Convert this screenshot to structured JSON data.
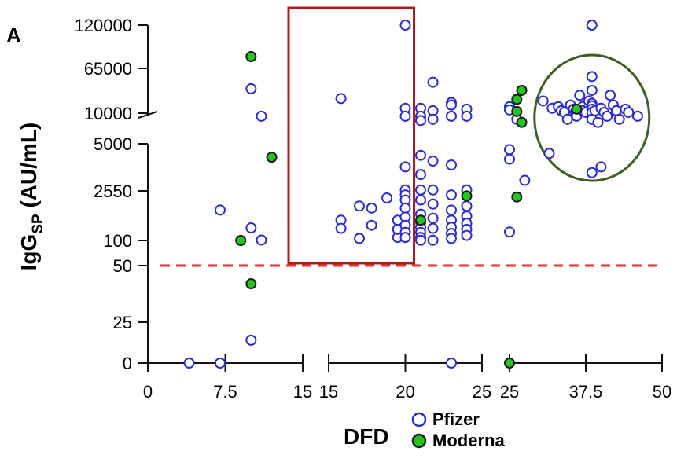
{
  "chart_data": {
    "type": "scatter",
    "panel_label": "A",
    "xlabel": "DFD",
    "ylabel": {
      "main": "IgG",
      "sub": "SP",
      "unit": " (AU/mL)"
    },
    "y_tick_labels": [
      "0",
      "25",
      "50",
      "100",
      "2550",
      "5000",
      "10000",
      "65000",
      "120000"
    ],
    "x_segments": [
      {
        "range": [
          0,
          15
        ],
        "tick_labels": [
          "0",
          "7.5",
          "15"
        ]
      },
      {
        "range": [
          15,
          25
        ],
        "tick_labels": [
          "15",
          "20",
          "25"
        ]
      },
      {
        "range": [
          25,
          50
        ],
        "tick_labels": [
          "25",
          "37.5",
          "50"
        ]
      }
    ],
    "threshold": {
      "y": 50,
      "color": "#e8322c",
      "style": "dashed"
    },
    "legend": [
      {
        "name": "Pfizer",
        "color": "#2b2bd6",
        "fill": "#ffffff"
      },
      {
        "name": "Moderna",
        "color": "#1a1a1a",
        "fill": "#22c61f"
      }
    ],
    "highlight_rect": {
      "x_range": [
        15,
        20
      ],
      "y_range": [
        50,
        130000
      ],
      "color": "#b01c1c"
    },
    "highlight_circle": {
      "x_center": 38.5,
      "y_center": 10000,
      "color": "#3f5e23"
    },
    "series": [
      {
        "name": "Pfizer",
        "points": [
          {
            "x": 4,
            "y": 0
          },
          {
            "x": 7,
            "y": 0
          },
          {
            "x": 7,
            "y": 1600
          },
          {
            "x": 10,
            "y": 14
          },
          {
            "x": 10,
            "y": 720
          },
          {
            "x": 10,
            "y": 40000
          },
          {
            "x": 11,
            "y": 9500
          },
          {
            "x": 11,
            "y": 120
          },
          {
            "x": 15.8,
            "y": 28000
          },
          {
            "x": 15.8,
            "y": 1100
          },
          {
            "x": 15.8,
            "y": 700
          },
          {
            "x": 17,
            "y": 1800
          },
          {
            "x": 17,
            "y": 200
          },
          {
            "x": 17.8,
            "y": 1700
          },
          {
            "x": 17.8,
            "y": 850
          },
          {
            "x": 18.8,
            "y": 2200
          },
          {
            "x": 19.5,
            "y": 1100
          },
          {
            "x": 19.5,
            "y": 250
          },
          {
            "x": 19.5,
            "y": 650
          },
          {
            "x": 20,
            "y": 120000
          },
          {
            "x": 20,
            "y": 16000
          },
          {
            "x": 20,
            "y": 9500
          },
          {
            "x": 20,
            "y": 3800
          },
          {
            "x": 20,
            "y": 2600
          },
          {
            "x": 20,
            "y": 2350
          },
          {
            "x": 20,
            "y": 2100
          },
          {
            "x": 20,
            "y": 1700
          },
          {
            "x": 20,
            "y": 1250
          },
          {
            "x": 20,
            "y": 850
          },
          {
            "x": 20,
            "y": 500
          },
          {
            "x": 20,
            "y": 250
          },
          {
            "x": 21,
            "y": 16000
          },
          {
            "x": 21,
            "y": 9500
          },
          {
            "x": 21,
            "y": 8800
          },
          {
            "x": 21,
            "y": 4400
          },
          {
            "x": 21,
            "y": 3400
          },
          {
            "x": 21,
            "y": 2600
          },
          {
            "x": 21,
            "y": 2100
          },
          {
            "x": 21,
            "y": 1400
          },
          {
            "x": 21,
            "y": 1000
          },
          {
            "x": 21,
            "y": 750
          },
          {
            "x": 21,
            "y": 500
          },
          {
            "x": 21,
            "y": 250
          },
          {
            "x": 21,
            "y": 110
          },
          {
            "x": 21.8,
            "y": 48000
          },
          {
            "x": 21.8,
            "y": 13000
          },
          {
            "x": 21.8,
            "y": 9000
          },
          {
            "x": 21.8,
            "y": 4100
          },
          {
            "x": 21.8,
            "y": 2600
          },
          {
            "x": 21.8,
            "y": 1900
          },
          {
            "x": 21.8,
            "y": 1200
          },
          {
            "x": 21.8,
            "y": 700
          },
          {
            "x": 21.8,
            "y": 110
          },
          {
            "x": 23,
            "y": 0
          },
          {
            "x": 23,
            "y": 23000
          },
          {
            "x": 23,
            "y": 20000
          },
          {
            "x": 23,
            "y": 9500
          },
          {
            "x": 23,
            "y": 3900
          },
          {
            "x": 23,
            "y": 2350
          },
          {
            "x": 23,
            "y": 1600
          },
          {
            "x": 23,
            "y": 1100
          },
          {
            "x": 23,
            "y": 750
          },
          {
            "x": 23,
            "y": 450
          },
          {
            "x": 23,
            "y": 200
          },
          {
            "x": 24,
            "y": 15000
          },
          {
            "x": 24,
            "y": 9500
          },
          {
            "x": 24,
            "y": 2600
          },
          {
            "x": 24,
            "y": 1800
          },
          {
            "x": 24,
            "y": 1300
          },
          {
            "x": 24,
            "y": 950
          },
          {
            "x": 24,
            "y": 650
          },
          {
            "x": 24,
            "y": 350
          },
          {
            "x": 25,
            "y": 18000
          },
          {
            "x": 25,
            "y": 14000
          },
          {
            "x": 25,
            "y": 4700
          },
          {
            "x": 25,
            "y": 4200
          },
          {
            "x": 25,
            "y": 520
          },
          {
            "x": 26.2,
            "y": 9000
          },
          {
            "x": 27.5,
            "y": 3100
          },
          {
            "x": 30.5,
            "y": 25000
          },
          {
            "x": 31.5,
            "y": 4500
          },
          {
            "x": 32,
            "y": 16000
          },
          {
            "x": 33,
            "y": 18000
          },
          {
            "x": 33.5,
            "y": 13000
          },
          {
            "x": 34,
            "y": 11000
          },
          {
            "x": 34.5,
            "y": 9000
          },
          {
            "x": 35,
            "y": 20000
          },
          {
            "x": 35.5,
            "y": 15000
          },
          {
            "x": 35.8,
            "y": 11000
          },
          {
            "x": 36,
            "y": 9500
          },
          {
            "x": 36.5,
            "y": 32000
          },
          {
            "x": 37,
            "y": 18000
          },
          {
            "x": 37,
            "y": 13000
          },
          {
            "x": 37.5,
            "y": 11000
          },
          {
            "x": 38,
            "y": 25000
          },
          {
            "x": 38.5,
            "y": 120000
          },
          {
            "x": 38.5,
            "y": 55000
          },
          {
            "x": 38.5,
            "y": 38000
          },
          {
            "x": 38.5,
            "y": 22000
          },
          {
            "x": 38.5,
            "y": 19000
          },
          {
            "x": 38.5,
            "y": 15000
          },
          {
            "x": 38.5,
            "y": 11000
          },
          {
            "x": 38.5,
            "y": 9000
          },
          {
            "x": 38.5,
            "y": 3500
          },
          {
            "x": 39,
            "y": 13000
          },
          {
            "x": 39.5,
            "y": 8500
          },
          {
            "x": 40,
            "y": 16000
          },
          {
            "x": 40,
            "y": 3800
          },
          {
            "x": 40.5,
            "y": 11000
          },
          {
            "x": 41,
            "y": 9500
          },
          {
            "x": 41.5,
            "y": 32000
          },
          {
            "x": 42,
            "y": 20000
          },
          {
            "x": 42.5,
            "y": 13000
          },
          {
            "x": 43,
            "y": 9000
          },
          {
            "x": 44,
            "y": 15000
          },
          {
            "x": 44.5,
            "y": 11000
          },
          {
            "x": 46,
            "y": 9500
          }
        ]
      },
      {
        "name": "Moderna",
        "points": [
          {
            "x": 9,
            "y": 100
          },
          {
            "x": 10,
            "y": 80000
          },
          {
            "x": 10,
            "y": 42
          },
          {
            "x": 12,
            "y": 4300
          },
          {
            "x": 21,
            "y": 1100
          },
          {
            "x": 24,
            "y": 2300
          },
          {
            "x": 25,
            "y": 0
          },
          {
            "x": 26.2,
            "y": 27000
          },
          {
            "x": 26.2,
            "y": 12000
          },
          {
            "x": 26.2,
            "y": 2250
          },
          {
            "x": 27,
            "y": 38000
          },
          {
            "x": 27,
            "y": 8500
          },
          {
            "x": 36,
            "y": 15000
          }
        ]
      }
    ]
  }
}
